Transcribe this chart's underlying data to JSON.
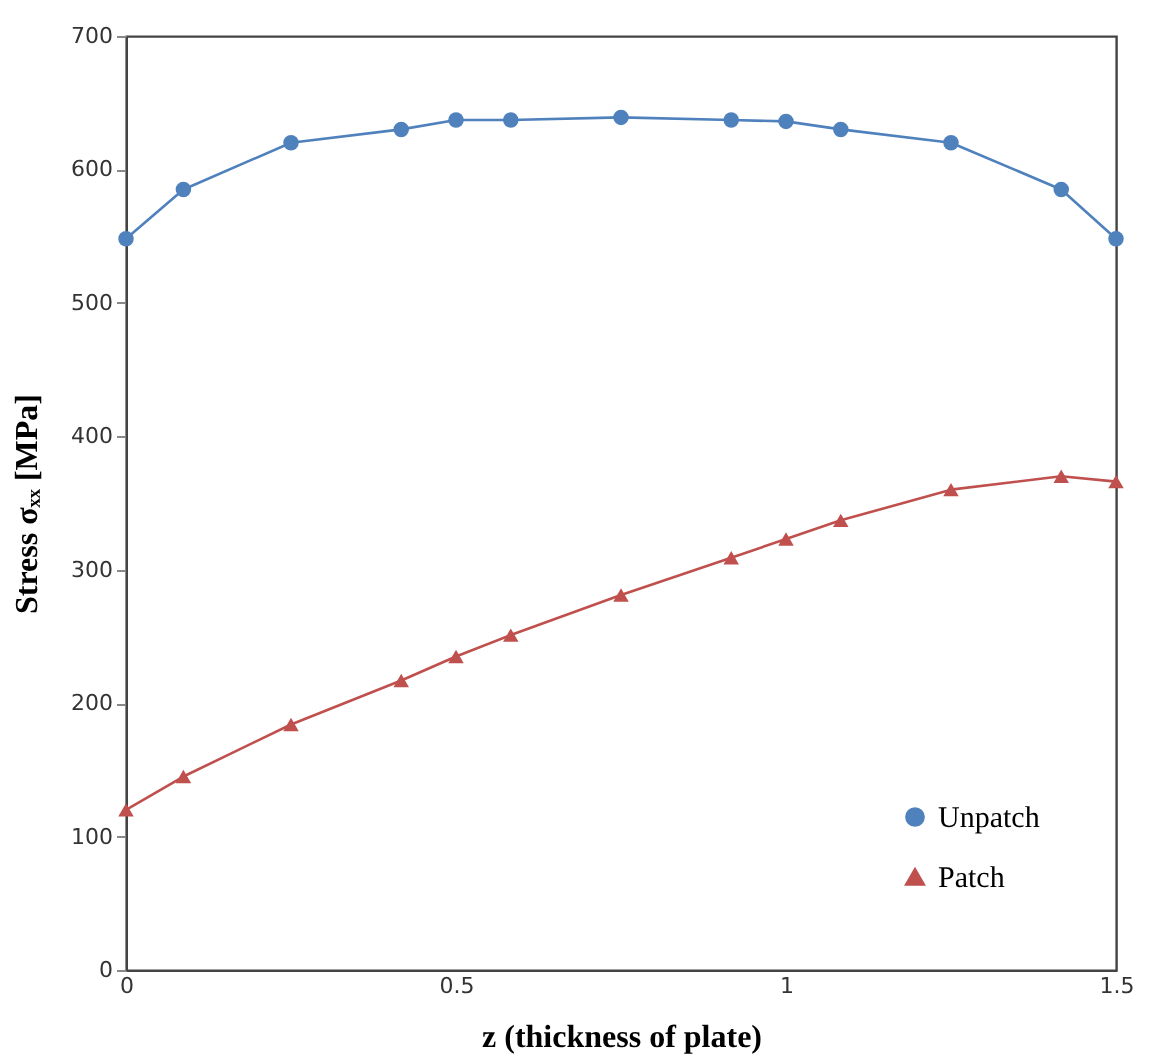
{
  "chart_data": {
    "type": "line",
    "xlabel": "z (thickness of plate)",
    "ylabel": "Stress σₓₓ [MPa]",
    "x": [
      0,
      0.087,
      0.25,
      0.417,
      0.5,
      0.583,
      0.75,
      0.917,
      1.0,
      1.083,
      1.25,
      1.417,
      1.5
    ],
    "series": [
      {
        "name": "Unpatch",
        "color": "#4f81bd",
        "marker": "circle",
        "values": [
          548,
          585,
          620,
          630,
          637,
          637,
          639,
          637,
          636,
          630,
          620,
          585,
          548
        ]
      },
      {
        "name": "Patch",
        "color": "#c0504d",
        "marker": "triangle",
        "values": [
          120,
          145,
          184,
          217,
          235,
          251,
          281,
          309,
          323,
          337,
          360,
          370,
          366
        ]
      }
    ],
    "xlim": [
      0,
      1.5
    ],
    "xticks": [
      0,
      0.5,
      1,
      1.5
    ],
    "ylim": [
      0,
      700
    ],
    "yticks": [
      0,
      100,
      200,
      300,
      400,
      500,
      600,
      700
    ],
    "grid": false,
    "legend": "bottom right",
    "line_style": "solid"
  }
}
